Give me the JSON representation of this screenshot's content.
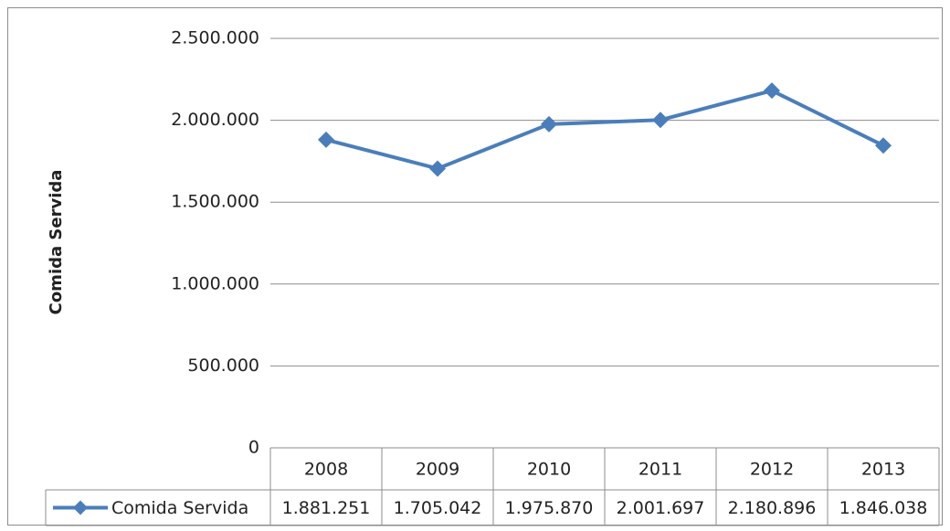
{
  "chart_data": {
    "type": "line",
    "y_label": "Comida  Servida",
    "categories": [
      "2008",
      "2009",
      "2010",
      "2011",
      "2012",
      "2013"
    ],
    "series": [
      {
        "name": "Comida Servida",
        "color": "#4a7ebb",
        "values": [
          1881251,
          1705042,
          1975870,
          2001697,
          2180896,
          1846038
        ],
        "value_labels": [
          "1.881.251",
          "1.705.042",
          "1.975.870",
          "2.001.697",
          "2.180.896",
          "1.846.038"
        ]
      }
    ],
    "ylim": [
      0,
      2500000
    ],
    "yticks": [
      0,
      {
        "value": 500000,
        "label": "500.000"
      },
      {
        "value": 1000000,
        "label": "1.000.000"
      },
      {
        "value": 1500000,
        "label": "1.500.000"
      },
      {
        "value": 2000000,
        "label": "2.000.000"
      },
      {
        "value": 2500000,
        "label": "2.500.000"
      }
    ],
    "grid": true,
    "data_table": true
  }
}
